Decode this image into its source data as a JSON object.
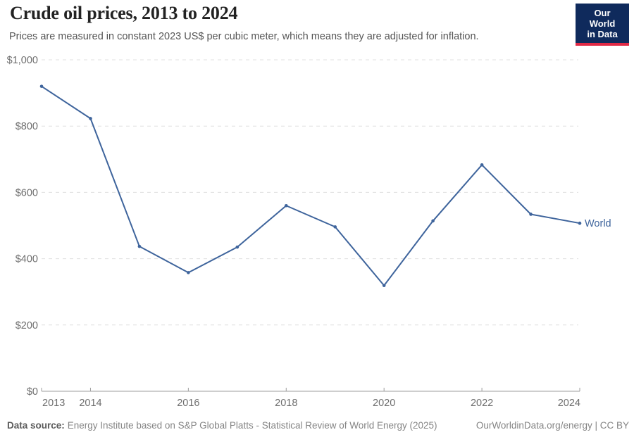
{
  "header": {
    "title": "Crude oil prices, 2013 to 2024",
    "subtitle": "Prices are measured in constant 2023 US$ per cubic meter, which means they are adjusted for inflation.",
    "logo": {
      "line1": "Our World",
      "line2": "in Data"
    }
  },
  "chart_data": {
    "type": "line",
    "title": "Crude oil prices, 2013 to 2024",
    "x": [
      2013,
      2014,
      2015,
      2016,
      2017,
      2018,
      2019,
      2020,
      2021,
      2022,
      2023,
      2024
    ],
    "series": [
      {
        "name": "World",
        "values": [
          920,
          823,
          437,
          358,
          435,
          560,
          496,
          319,
          514,
          683,
          534,
          507
        ]
      }
    ],
    "ylim": [
      0,
      1000
    ],
    "yticks": {
      "values": [
        0,
        200,
        400,
        600,
        800,
        1000
      ],
      "labels": [
        "$0",
        "$200",
        "$400",
        "$600",
        "$800",
        "$1,000"
      ]
    },
    "xticks": {
      "years": [
        2013,
        2014,
        2016,
        2018,
        2020,
        2022,
        2024
      ],
      "labels": [
        "2013",
        "2014",
        "2016",
        "2018",
        "2020",
        "2022",
        "2024"
      ]
    },
    "grid": "horizontal-dashed",
    "legend_position": "end-of-line-label",
    "end_label": "World"
  },
  "footer": {
    "source_label": "Data source:",
    "source_text": "Energy Institute based on S&P Global Platts - Statistical Review of World Energy (2025)",
    "link_text": "OurWorldinData.org/energy",
    "license": " | CC BY"
  },
  "colors": {
    "line": "#3e649c",
    "point": "#3e649c",
    "end_label": "#3e649c",
    "grid": "#e0e0e0",
    "axis": "#9e9e9e",
    "tick_label": "#6e6e6e",
    "title": "#222222",
    "subtitle": "#555555",
    "footer": "#858585",
    "footer_bold": "#5b5b5b",
    "logo_bg": "#0f2a5c",
    "logo_stripe": "#e02945"
  }
}
